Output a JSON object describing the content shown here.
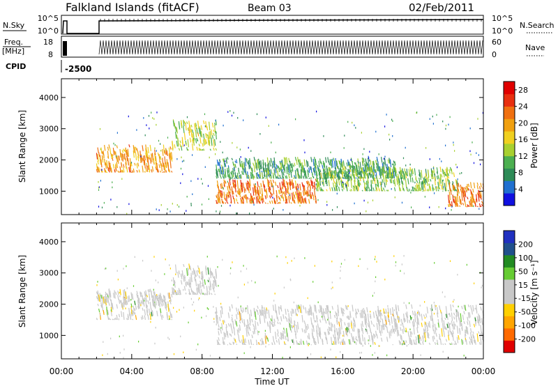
{
  "header": {
    "station": "Falkland Islands (fitACF)",
    "beam": "Beam 03",
    "date": "02/Feb/2011"
  },
  "strips": {
    "nsky": {
      "label": "N.Sky",
      "ticks": [
        "10^5",
        "10^0"
      ],
      "right_label": "N.Search",
      "right_ticks": [
        "10^5",
        "10^0"
      ]
    },
    "freq": {
      "label_top": "Freq.",
      "label_bottom": "[MHz]",
      "ticks": [
        "18",
        "8"
      ],
      "right_label": "Nave",
      "right_ticks": [
        "60",
        "0"
      ]
    },
    "cpid": {
      "label": "CPID",
      "value": "-2500"
    }
  },
  "colors": {
    "power": [
      "#1010e0",
      "#2070d0",
      "#2e8b57",
      "#4caf50",
      "#a8d030",
      "#f0d020",
      "#f0a010",
      "#f07010",
      "#e83010",
      "#e00000"
    ],
    "velocity": [
      "#e00000",
      "#ff6a00",
      "#ffa500",
      "#ffd000",
      "#c8c8c8",
      "#c8c8c8",
      "#66cc33",
      "#228b22",
      "#20508c",
      "#2030c0"
    ]
  },
  "chart_data": [
    {
      "type": "heatmap",
      "panel": "power",
      "xlabel": "",
      "ylabel": "Slant Range [km]",
      "x_unit": "hours UT",
      "xlim": [
        0,
        24
      ],
      "ylim": [
        250,
        4600
      ],
      "yticks": [
        1000,
        2000,
        3000,
        4000
      ],
      "colorbar": {
        "label": "Power [dB]",
        "ticks": [
          "28",
          "24",
          "20",
          "16",
          "12",
          "8",
          "4"
        ],
        "range": [
          0,
          30
        ]
      },
      "echo_bands": [
        {
          "x": [
            2.0,
            6.3
          ],
          "range_km": [
            1600,
            2500
          ],
          "value": 20
        },
        {
          "x": [
            6.3,
            8.8
          ],
          "range_km": [
            2300,
            3300
          ],
          "value": 14
        },
        {
          "x": [
            8.8,
            14.5
          ],
          "range_km": [
            600,
            1400
          ],
          "value": 22
        },
        {
          "x": [
            8.8,
            19.0
          ],
          "range_km": [
            1400,
            2100
          ],
          "value": 9
        },
        {
          "x": [
            14.5,
            22.5
          ],
          "range_km": [
            1000,
            1800
          ],
          "value": 12
        },
        {
          "x": [
            22.0,
            24.0
          ],
          "range_km": [
            500,
            1300
          ],
          "value": 22
        }
      ]
    },
    {
      "type": "heatmap",
      "panel": "velocity",
      "xlabel": "Time UT",
      "ylabel": "Slant Range [km]",
      "x_unit": "hours UT",
      "xlim": [
        0,
        24
      ],
      "ylim": [
        250,
        4600
      ],
      "yticks": [
        1000,
        2000,
        3000,
        4000
      ],
      "xticks": [
        "00:00",
        "04:00",
        "08:00",
        "12:00",
        "16:00",
        "20:00",
        "00:00"
      ],
      "colorbar": {
        "label": "Velocity [m s⁻¹]",
        "ticks": [
          "200",
          "100",
          "50",
          "15",
          "-15",
          "-50",
          "-100",
          "-200"
        ],
        "range": [
          -250,
          250
        ]
      },
      "echo_bands": [
        {
          "x": [
            2.0,
            6.3
          ],
          "range_km": [
            1500,
            2500
          ],
          "value": 0
        },
        {
          "x": [
            6.3,
            8.8
          ],
          "range_km": [
            2300,
            3300
          ],
          "value": 30
        },
        {
          "x": [
            8.8,
            24.0
          ],
          "range_km": [
            700,
            2000
          ],
          "value": 0
        }
      ]
    }
  ]
}
